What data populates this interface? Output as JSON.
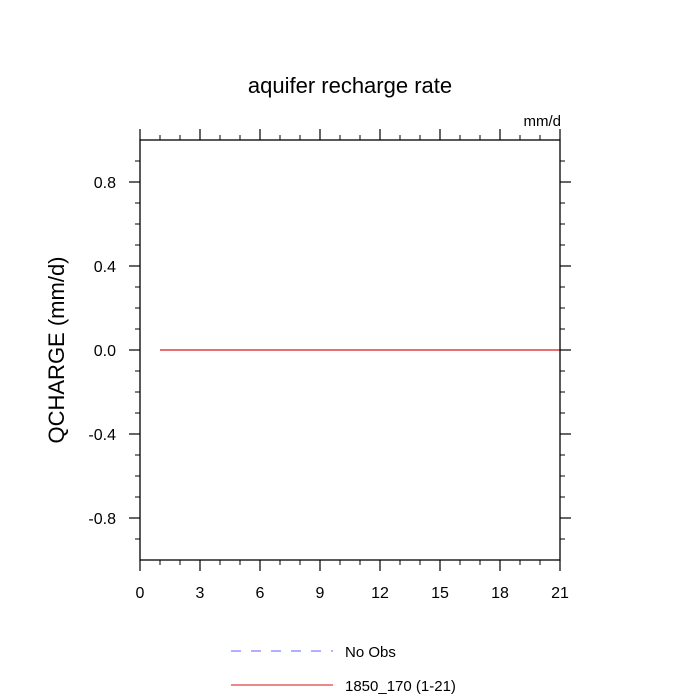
{
  "chart_data": {
    "type": "line",
    "title": "aquifer recharge rate",
    "units": "mm/d",
    "ylabel": "QCHARGE  (mm/d)",
    "xlabel": "",
    "xlim": [
      0,
      21
    ],
    "ylim": [
      -1,
      1
    ],
    "xticks": [
      0,
      3,
      6,
      9,
      12,
      15,
      18,
      21
    ],
    "xtick_labels": [
      "0",
      "3",
      "6",
      "9",
      "12",
      "15",
      "18",
      "21"
    ],
    "yticks": [
      -0.8,
      -0.4,
      0.0,
      0.4,
      0.8
    ],
    "ytick_labels": [
      "-0.8",
      "-0.4",
      "0.0",
      "0.4",
      "0.8"
    ],
    "grid": false,
    "legend_position": "bottom",
    "series": [
      {
        "name": "No Obs",
        "color": "#8080ff",
        "style": "dashed",
        "x": [],
        "y": []
      },
      {
        "name": "1850_170 (1-21)",
        "color": "#e04040",
        "style": "solid",
        "x": [
          1,
          2,
          3,
          4,
          5,
          6,
          7,
          8,
          9,
          10,
          11,
          12,
          13,
          14,
          15,
          16,
          17,
          18,
          19,
          20,
          21
        ],
        "y": [
          0,
          0,
          0,
          0,
          0,
          0,
          0,
          0,
          0,
          0,
          0,
          0,
          0,
          0,
          0,
          0,
          0,
          0,
          0,
          0,
          0
        ]
      }
    ]
  }
}
